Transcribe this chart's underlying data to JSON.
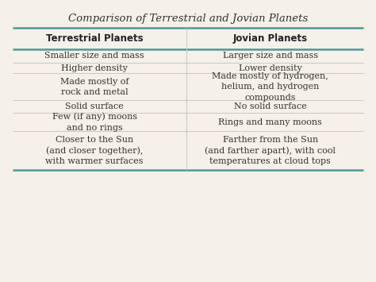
{
  "title": "Comparison of Terrestrial and Jovian Planets",
  "col1_header": "Terrestrial Planets",
  "col2_header": "Jovian Planets",
  "rows": [
    [
      "Smaller size and mass",
      "Larger size and mass"
    ],
    [
      "Higher density",
      "Lower density"
    ],
    [
      "Made mostly of\nrock and metal",
      "Made mostly of hydrogen,\nhelium, and hydrogen\ncompounds"
    ],
    [
      "Solid surface",
      "No solid surface"
    ],
    [
      "Few (if any) moons\nand no rings",
      "Rings and many moons"
    ],
    [
      "Closer to the Sun\n(and closer together),\nwith warmer surfaces",
      "Farther from the Sun\n(and farther apart), with cool\ntemperatures at cloud tops"
    ]
  ],
  "bg_color": "#f5f0e8",
  "line_color": "#4a9a9a",
  "inner_line_color": "#c8c8c8",
  "title_color": "#333333",
  "header_color": "#222222",
  "cell_color": "#333333",
  "fig_width": 4.74,
  "fig_height": 3.55,
  "dpi": 100
}
